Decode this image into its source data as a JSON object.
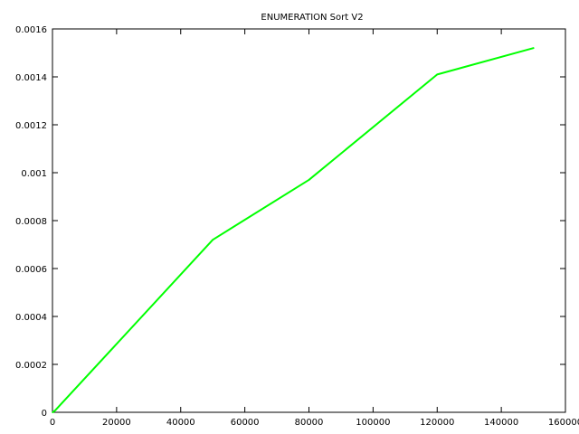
{
  "chart_data": {
    "type": "line",
    "title": "ENUMERATION Sort V2",
    "xlabel": "",
    "ylabel": "",
    "xlim": [
      0,
      160000
    ],
    "ylim": [
      0,
      0.0016
    ],
    "x_ticks": [
      "0",
      "20000",
      "40000",
      "60000",
      "80000",
      "100000",
      "120000",
      "140000",
      "160000"
    ],
    "x_tick_values": [
      0,
      20000,
      40000,
      60000,
      80000,
      100000,
      120000,
      140000,
      160000
    ],
    "y_ticks": [
      "0",
      "0.0002",
      "0.0004",
      "0.0006",
      "0.0008",
      "0.001",
      "0.0012",
      "0.0014",
      "0.0016"
    ],
    "y_tick_values": [
      0,
      0.0002,
      0.0004,
      0.0006,
      0.0008,
      0.001,
      0.0012,
      0.0014,
      0.0016
    ],
    "grid": false,
    "legend": "none",
    "series": [
      {
        "color": "#00ff00",
        "x": [
          100,
          1000,
          50000,
          80000,
          120000,
          150000
        ],
        "y": [
          0.0,
          1e-05,
          0.00072,
          0.00097,
          0.00141,
          0.00152
        ]
      }
    ]
  }
}
